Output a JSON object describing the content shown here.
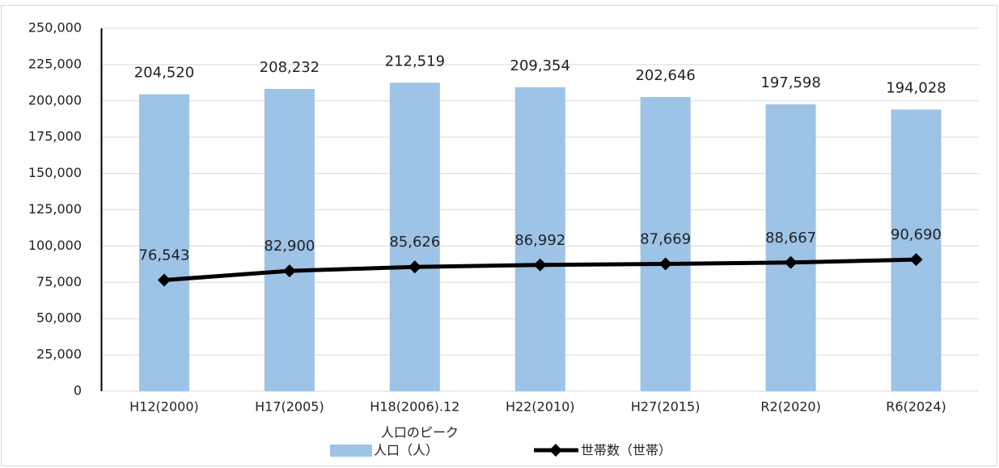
{
  "chart_data": {
    "type": "bar",
    "categories": [
      "H12(2000)",
      "H17(2005)",
      "H18(2006).12",
      "H22(2010)",
      "H27(2015)",
      "R2(2020)",
      "R6(2024)"
    ],
    "annotation": "人口のピーク",
    "series": [
      {
        "name": "人口（人）",
        "type": "bar",
        "color": "#9dc3e6",
        "values": [
          204520,
          208232,
          212519,
          209354,
          202646,
          197598,
          194028
        ],
        "value_labels": [
          "204,520",
          "208,232",
          "212,519",
          "209,354",
          "202,646",
          "197,598",
          "194,028"
        ]
      },
      {
        "name": "世帯数（世帯）",
        "type": "line",
        "color": "#000000",
        "values": [
          76543,
          82900,
          85626,
          86992,
          87669,
          88667,
          90690
        ],
        "value_labels": [
          "76,543",
          "82,900",
          "85,626",
          "86,992",
          "87,669",
          "88,667",
          "90,690"
        ]
      }
    ],
    "ylim": [
      0,
      250000
    ],
    "yticks": [
      {
        "value": 0,
        "label": "0"
      },
      {
        "value": 25000,
        "label": "25,000"
      },
      {
        "value": 50000,
        "label": "50,000"
      },
      {
        "value": 75000,
        "label": "75,000"
      },
      {
        "value": 100000,
        "label": "100,000"
      },
      {
        "value": 125000,
        "label": "125,000"
      },
      {
        "value": 150000,
        "label": "150,000"
      },
      {
        "value": 175000,
        "label": "175,000"
      },
      {
        "value": 200000,
        "label": "200,000"
      },
      {
        "value": 225000,
        "label": "225,000"
      },
      {
        "value": 250000,
        "label": "250,000"
      }
    ],
    "grid": true,
    "legend": "bottom"
  }
}
